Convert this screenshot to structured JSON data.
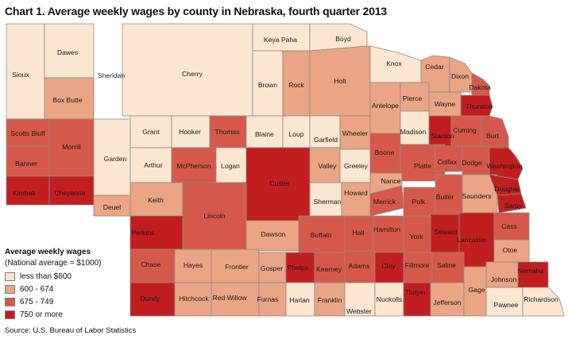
{
  "title": "Chart 1. Average weekly wages by county in Nebraska, fourth quarter 2013",
  "legend": {
    "title": "Average weekly wages",
    "subtitle": "(National average = $1000)",
    "items": [
      {
        "label": "less than $600",
        "color": "#fbe6d1"
      },
      {
        "label": "600 - 674",
        "color": "#eba484"
      },
      {
        "label": "675 -  749",
        "color": "#d6584a"
      },
      {
        "label": "750 or more",
        "color": "#c21e20"
      }
    ]
  },
  "source": "Source: U.S. Bureau of Labor Statistics",
  "counties": [
    {
      "name": "Sioux",
      "cls": 0
    },
    {
      "name": "Dawes",
      "cls": 0
    },
    {
      "name": "Sheridan",
      "cls": 0
    },
    {
      "name": "Cherry",
      "cls": 0
    },
    {
      "name": "Keya Paha",
      "cls": 0
    },
    {
      "name": "Boyd",
      "cls": 0
    },
    {
      "name": "Box Butte",
      "cls": 1
    },
    {
      "name": "Brown",
      "cls": 0
    },
    {
      "name": "Rock",
      "cls": 1
    },
    {
      "name": "Holt",
      "cls": 1
    },
    {
      "name": "Knox",
      "cls": 0
    },
    {
      "name": "Cedar",
      "cls": 1
    },
    {
      "name": "Dixon",
      "cls": 1
    },
    {
      "name": "Dakota",
      "cls": 2
    },
    {
      "name": "Scotts Bluff",
      "cls": 2
    },
    {
      "name": "Morrill",
      "cls": 2
    },
    {
      "name": "Banner",
      "cls": 2
    },
    {
      "name": "Kimball",
      "cls": 3
    },
    {
      "name": "Cheyenne",
      "cls": 3
    },
    {
      "name": "Garden",
      "cls": 0
    },
    {
      "name": "Deuel",
      "cls": 1
    },
    {
      "name": "Grant",
      "cls": 0
    },
    {
      "name": "Hooker",
      "cls": 0
    },
    {
      "name": "Thomas",
      "cls": 2
    },
    {
      "name": "Blaine",
      "cls": 0
    },
    {
      "name": "Loup",
      "cls": 0
    },
    {
      "name": "Garfield",
      "cls": 0
    },
    {
      "name": "Wheeler",
      "cls": 1
    },
    {
      "name": "Antelope",
      "cls": 1
    },
    {
      "name": "Pierce",
      "cls": 1
    },
    {
      "name": "Wayne",
      "cls": 1
    },
    {
      "name": "Thurston",
      "cls": 3
    },
    {
      "name": "Arthur",
      "cls": 0
    },
    {
      "name": "McPherson",
      "cls": 2
    },
    {
      "name": "Logan",
      "cls": 0
    },
    {
      "name": "Custer",
      "cls": 3
    },
    {
      "name": "Valley",
      "cls": 1
    },
    {
      "name": "Greeley",
      "cls": 0
    },
    {
      "name": "Boone",
      "cls": 2
    },
    {
      "name": "Madison",
      "cls": 0
    },
    {
      "name": "Stanton",
      "cls": 3
    },
    {
      "name": "Cuming",
      "cls": 2
    },
    {
      "name": "Burt",
      "cls": 2
    },
    {
      "name": "Platte",
      "cls": 2
    },
    {
      "name": "Colfax",
      "cls": 2
    },
    {
      "name": "Dodge",
      "cls": 2
    },
    {
      "name": "Washington",
      "cls": 3
    },
    {
      "name": "Keith",
      "cls": 1
    },
    {
      "name": "Lincoln",
      "cls": 2
    },
    {
      "name": "Sherman",
      "cls": 0
    },
    {
      "name": "Howard",
      "cls": 1
    },
    {
      "name": "Nance",
      "cls": 1
    },
    {
      "name": "Merrick",
      "cls": 2
    },
    {
      "name": "Polk",
      "cls": 2
    },
    {
      "name": "Butler",
      "cls": 2
    },
    {
      "name": "Saunders",
      "cls": 1
    },
    {
      "name": "Douglas",
      "cls": 3
    },
    {
      "name": "Sarpy",
      "cls": 3
    },
    {
      "name": "Perkins",
      "cls": 3
    },
    {
      "name": "Dawson",
      "cls": 1
    },
    {
      "name": "Buffalo",
      "cls": 2
    },
    {
      "name": "Hall",
      "cls": 2
    },
    {
      "name": "Hamilton",
      "cls": 2
    },
    {
      "name": "York",
      "cls": 2
    },
    {
      "name": "Seward",
      "cls": 3
    },
    {
      "name": "Lancaster",
      "cls": 3
    },
    {
      "name": "Cass",
      "cls": 2
    },
    {
      "name": "Otoe",
      "cls": 1
    },
    {
      "name": "Chase",
      "cls": 2
    },
    {
      "name": "Hayes",
      "cls": 1
    },
    {
      "name": "Frontier",
      "cls": 1
    },
    {
      "name": "Gosper",
      "cls": 1
    },
    {
      "name": "Phelps",
      "cls": 3
    },
    {
      "name": "Kearney",
      "cls": 2
    },
    {
      "name": "Adams",
      "cls": 2
    },
    {
      "name": "Clay",
      "cls": 3
    },
    {
      "name": "Fillmore",
      "cls": 2
    },
    {
      "name": "Saline",
      "cls": 2
    },
    {
      "name": "Johnson",
      "cls": 1
    },
    {
      "name": "Nemaha",
      "cls": 3
    },
    {
      "name": "Dundy",
      "cls": 3
    },
    {
      "name": "Hitchcock",
      "cls": 1
    },
    {
      "name": "Red Willow",
      "cls": 1
    },
    {
      "name": "Furnas",
      "cls": 1
    },
    {
      "name": "Harlan",
      "cls": 0
    },
    {
      "name": "Franklin",
      "cls": 1
    },
    {
      "name": "Webster",
      "cls": 0
    },
    {
      "name": "Nuckolls",
      "cls": 0
    },
    {
      "name": "Thayer",
      "cls": 3
    },
    {
      "name": "Jefferson",
      "cls": 1
    },
    {
      "name": "Gage",
      "cls": 1
    },
    {
      "name": "Pawnee",
      "cls": 0
    },
    {
      "name": "Richardson",
      "cls": 0
    }
  ]
}
